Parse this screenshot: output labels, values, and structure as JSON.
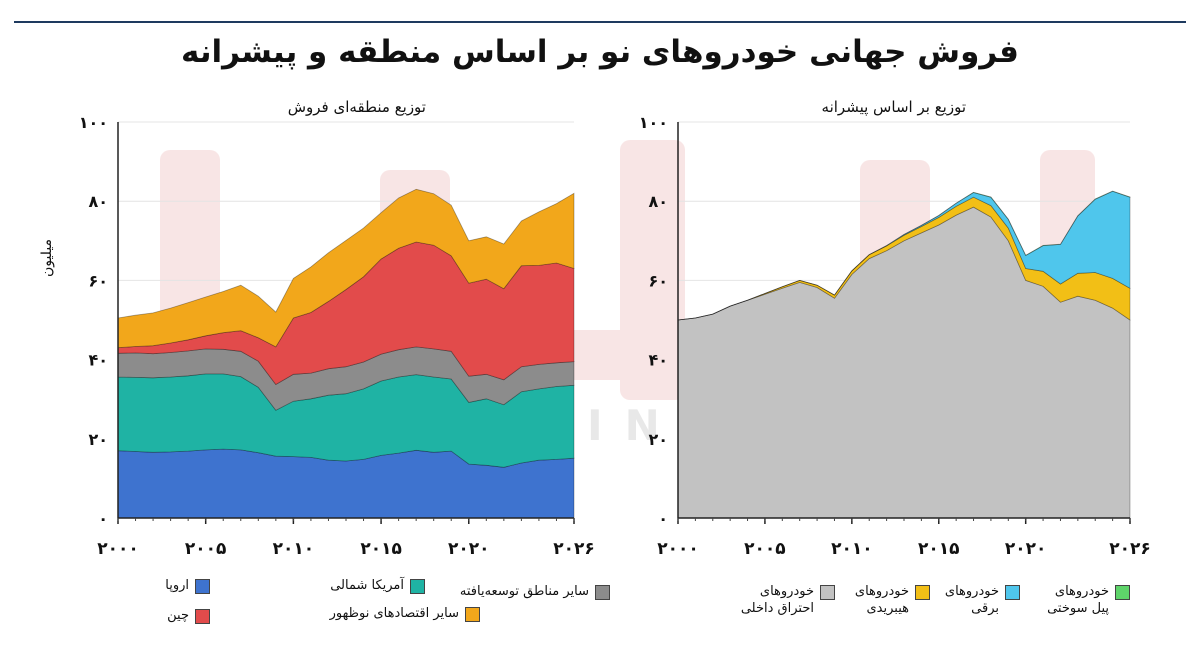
{
  "title": "فروش جهانی خودروهای نو بر اساس منطقه و پیشرانه",
  "watermark": "IRASIN.IR",
  "colors": {
    "europe": "#3e73cf",
    "north_america": "#1fb3a4",
    "other_developed": "#8c8c8c",
    "china": "#e24b4b",
    "emerging": "#f2a71b",
    "ice": "#c2c2c2",
    "hybrid": "#f2bf16",
    "ev": "#4fc6ec",
    "fcev": "#5ed46a"
  },
  "chart_data": [
    {
      "type": "area",
      "stacked": true,
      "subtitle": "توزیع منطقه‌ای فروش",
      "ylabel": "میلیون",
      "ylim": [
        0,
        100
      ],
      "yticks": [
        0,
        20,
        40,
        60,
        80,
        100
      ],
      "ytick_labels": [
        "۰",
        "۲۰",
        "۴۰",
        "۶۰",
        "۸۰",
        "۱۰۰"
      ],
      "xlim": [
        2000,
        2026
      ],
      "xticks": [
        2000,
        2005,
        2010,
        2015,
        2020,
        2026
      ],
      "xtick_labels": [
        "۲۰۰۰",
        "۲۰۰۵",
        "۲۰۱۰",
        "۲۰۱۵",
        "۲۰۲۰",
        "۲۰۲۶"
      ],
      "x": [
        2000,
        2001,
        2002,
        2003,
        2004,
        2005,
        2006,
        2007,
        2008,
        2009,
        2010,
        2011,
        2012,
        2013,
        2014,
        2015,
        2016,
        2017,
        2018,
        2019,
        2020,
        2021,
        2022,
        2023,
        2024,
        2025,
        2026
      ],
      "series": [
        {
          "name": "اروپا",
          "color_key": "europe",
          "values": [
            17,
            16.8,
            16.6,
            16.7,
            16.9,
            17.2,
            17.4,
            17.2,
            16.5,
            15.6,
            15.5,
            15.3,
            14.6,
            14.4,
            14.8,
            15.8,
            16.4,
            17.1,
            16.6,
            16.9,
            13.6,
            13.3,
            12.8,
            13.9,
            14.6,
            14.8,
            15.1
          ]
        },
        {
          "name": "آمریکا شمالی",
          "color_key": "north_america",
          "values": [
            18.6,
            18.7,
            18.8,
            18.9,
            19.0,
            19.2,
            19.0,
            18.5,
            16.5,
            11.6,
            14.0,
            14.8,
            16.4,
            17.0,
            17.8,
            18.8,
            19.2,
            19.1,
            19.0,
            18.2,
            15.6,
            16.8,
            15.8,
            18.0,
            18.0,
            18.4,
            18.4
          ]
        },
        {
          "name": "سایر مناطق توسعه‌یافته",
          "color_key": "other_developed",
          "values": [
            6.0,
            6.2,
            6.1,
            6.2,
            6.3,
            6.3,
            6.2,
            6.4,
            6.6,
            6.5,
            6.8,
            6.5,
            6.7,
            6.8,
            6.8,
            6.8,
            6.9,
            7.0,
            7.1,
            7.0,
            6.6,
            6.2,
            6.3,
            6.3,
            6.2,
            6.0,
            6.0
          ]
        },
        {
          "name": "چین",
          "color_key": "china",
          "values": [
            1.4,
            1.6,
            2.0,
            2.4,
            2.8,
            3.3,
            4.2,
            5.2,
            5.9,
            9.5,
            14.2,
            15.3,
            17.0,
            19.5,
            21.5,
            24.0,
            25.6,
            26.5,
            26.2,
            24.1,
            23.5,
            24.0,
            23.0,
            25.5,
            25.0,
            25.2,
            23.5
          ]
        },
        {
          "name": "سایر اقتصادهای نوظهور",
          "color_key": "emerging",
          "values": [
            7.5,
            7.9,
            8.3,
            8.8,
            9.4,
            9.8,
            10.4,
            11.5,
            10.5,
            8.8,
            10.0,
            11.5,
            12.3,
            12.4,
            12.3,
            11.7,
            12.7,
            13.3,
            13.0,
            12.8,
            10.7,
            10.7,
            11.3,
            11.3,
            13.5,
            15.0,
            19.0
          ]
        }
      ]
    },
    {
      "type": "area",
      "stacked": true,
      "subtitle": "توزیع بر اساس پیشرانه",
      "ylim": [
        0,
        100
      ],
      "yticks": [
        0,
        20,
        40,
        60,
        80,
        100
      ],
      "ytick_labels": [
        "۰",
        "۲۰",
        "۴۰",
        "۶۰",
        "۸۰",
        "۱۰۰"
      ],
      "xlim": [
        2000,
        2026
      ],
      "xticks": [
        2000,
        2005,
        2010,
        2015,
        2020,
        2026
      ],
      "xtick_labels": [
        "۲۰۰۰",
        "۲۰۰۵",
        "۲۰۱۰",
        "۲۰۱۵",
        "۲۰۲۰",
        "۲۰۲۶"
      ],
      "x": [
        2000,
        2001,
        2002,
        2003,
        2004,
        2005,
        2006,
        2007,
        2008,
        2009,
        2010,
        2011,
        2012,
        2013,
        2014,
        2015,
        2016,
        2017,
        2018,
        2019,
        2020,
        2021,
        2022,
        2023,
        2024,
        2025,
        2026
      ],
      "series": [
        {
          "name": "خودروهای احتراق داخلی",
          "color_key": "ice",
          "values": [
            50,
            50.5,
            51.5,
            53.5,
            55,
            56.5,
            58,
            59.5,
            58.2,
            55.5,
            61.5,
            65.5,
            67.5,
            70,
            72,
            74,
            76.5,
            78.5,
            76,
            70,
            60,
            58.5,
            54.5,
            56,
            55,
            53,
            50
          ]
        },
        {
          "name": "خودروهای هیبریدی",
          "color_key": "hybrid",
          "values": [
            0,
            0,
            0,
            0,
            0,
            0.2,
            0.4,
            0.5,
            0.6,
            0.8,
            0.9,
            1.0,
            1.2,
            1.4,
            1.6,
            1.9,
            2.2,
            2.5,
            2.9,
            3.2,
            3.0,
            3.8,
            4.6,
            5.8,
            7.0,
            7.5,
            8.0
          ]
        },
        {
          "name": "خودروهای برقی",
          "color_key": "ev",
          "values": [
            0,
            0,
            0,
            0,
            0,
            0,
            0,
            0,
            0,
            0,
            0,
            0,
            0.1,
            0.2,
            0.3,
            0.5,
            0.8,
            1.2,
            2.1,
            2.2,
            3.3,
            6.5,
            10.0,
            14.5,
            18.5,
            22.0,
            23.0
          ]
        },
        {
          "name": "خودروهای پیل سوختی",
          "color_key": "fcev",
          "values": [
            0,
            0,
            0,
            0,
            0,
            0,
            0,
            0,
            0,
            0,
            0,
            0,
            0,
            0,
            0,
            0,
            0,
            0.05,
            0.05,
            0.05,
            0.05,
            0.05,
            0.05,
            0.05,
            0.05,
            0.05,
            0.05
          ]
        }
      ]
    }
  ],
  "legend_left": [
    {
      "label": "اروپا",
      "color_key": "europe"
    },
    {
      "label": "آمریکا شمالی",
      "color_key": "north_america"
    },
    {
      "label": "سایر مناطق توسعه‌یافته",
      "color_key": "other_developed"
    },
    {
      "label": "چین",
      "color_key": "china"
    },
    {
      "label": "سایر اقتصادهای نوظهور",
      "color_key": "emerging"
    }
  ],
  "legend_right": [
    {
      "label": "خودروهای احتراق داخلی",
      "color_key": "ice"
    },
    {
      "label": "خودروهای هیبریدی",
      "color_key": "hybrid"
    },
    {
      "label": "خودروهای برقی",
      "color_key": "ev"
    },
    {
      "label": "خودروهای پیل سوختی",
      "color_key": "fcev"
    }
  ]
}
